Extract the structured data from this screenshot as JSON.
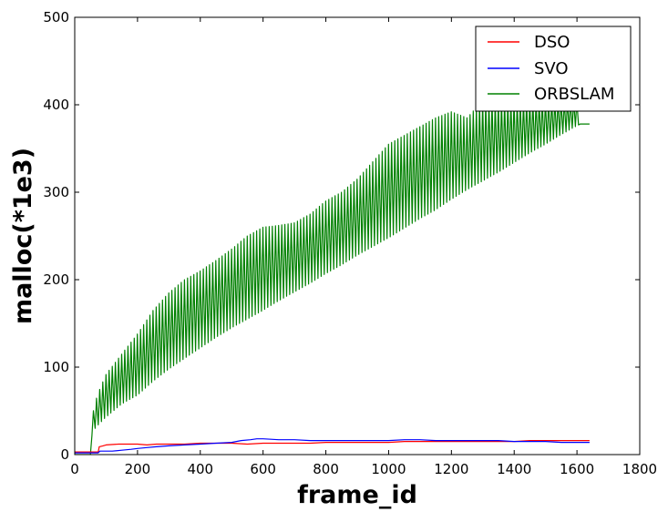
{
  "chart_data": {
    "type": "line",
    "title": "",
    "xlabel": "frame_id",
    "ylabel": "malloc(*1e3)",
    "xlim": [
      0,
      1800
    ],
    "ylim": [
      0,
      500
    ],
    "xticks": [
      0,
      200,
      400,
      600,
      800,
      1000,
      1200,
      1400,
      1600,
      1800
    ],
    "yticks": [
      0,
      100,
      200,
      300,
      400,
      500
    ],
    "grid": false,
    "legend_position": "top-right",
    "series": [
      {
        "name": "DSO",
        "color": "#ff0000",
        "points": [
          [
            0,
            3
          ],
          [
            60,
            3
          ],
          [
            75,
            3
          ],
          [
            78,
            9
          ],
          [
            90,
            10
          ],
          [
            100,
            11
          ],
          [
            140,
            12
          ],
          [
            200,
            12
          ],
          [
            230,
            11
          ],
          [
            260,
            12
          ],
          [
            300,
            12
          ],
          [
            350,
            12
          ],
          [
            400,
            13
          ],
          [
            450,
            13
          ],
          [
            500,
            13
          ],
          [
            550,
            12
          ],
          [
            600,
            13
          ],
          [
            650,
            13
          ],
          [
            700,
            13
          ],
          [
            750,
            13
          ],
          [
            800,
            14
          ],
          [
            850,
            14
          ],
          [
            900,
            14
          ],
          [
            950,
            14
          ],
          [
            1000,
            14
          ],
          [
            1050,
            15
          ],
          [
            1100,
            15
          ],
          [
            1150,
            15
          ],
          [
            1200,
            15
          ],
          [
            1250,
            15
          ],
          [
            1300,
            15
          ],
          [
            1350,
            15
          ],
          [
            1400,
            15
          ],
          [
            1450,
            16
          ],
          [
            1500,
            16
          ],
          [
            1550,
            16
          ],
          [
            1600,
            16
          ],
          [
            1640,
            16
          ]
        ]
      },
      {
        "name": "SVO",
        "color": "#0000ff",
        "points": [
          [
            0,
            2
          ],
          [
            60,
            2
          ],
          [
            75,
            2
          ],
          [
            80,
            4
          ],
          [
            120,
            4
          ],
          [
            150,
            5
          ],
          [
            180,
            6
          ],
          [
            200,
            7
          ],
          [
            230,
            8
          ],
          [
            260,
            9
          ],
          [
            300,
            10
          ],
          [
            350,
            11
          ],
          [
            400,
            12
          ],
          [
            450,
            13
          ],
          [
            500,
            14
          ],
          [
            530,
            16
          ],
          [
            560,
            17
          ],
          [
            580,
            18
          ],
          [
            600,
            18
          ],
          [
            650,
            17
          ],
          [
            700,
            17
          ],
          [
            750,
            16
          ],
          [
            800,
            16
          ],
          [
            850,
            16
          ],
          [
            900,
            16
          ],
          [
            950,
            16
          ],
          [
            1000,
            16
          ],
          [
            1050,
            17
          ],
          [
            1100,
            17
          ],
          [
            1150,
            16
          ],
          [
            1200,
            16
          ],
          [
            1250,
            16
          ],
          [
            1300,
            16
          ],
          [
            1350,
            16
          ],
          [
            1400,
            15
          ],
          [
            1450,
            15
          ],
          [
            1500,
            15
          ],
          [
            1550,
            14
          ],
          [
            1600,
            14
          ],
          [
            1640,
            14
          ]
        ]
      },
      {
        "name": "ORBSLAM",
        "color": "#008000",
        "low_envelope": [
          [
            50,
            0
          ],
          [
            55,
            22
          ],
          [
            60,
            28
          ],
          [
            80,
            36
          ],
          [
            100,
            43
          ],
          [
            150,
            58
          ],
          [
            200,
            68
          ],
          [
            250,
            84
          ],
          [
            300,
            98
          ],
          [
            350,
            110
          ],
          [
            400,
            122
          ],
          [
            450,
            134
          ],
          [
            500,
            145
          ],
          [
            550,
            155
          ],
          [
            600,
            165
          ],
          [
            650,
            176
          ],
          [
            700,
            186
          ],
          [
            750,
            196
          ],
          [
            800,
            207
          ],
          [
            850,
            217
          ],
          [
            900,
            228
          ],
          [
            950,
            238
          ],
          [
            1000,
            248
          ],
          [
            1050,
            259
          ],
          [
            1100,
            270
          ],
          [
            1150,
            280
          ],
          [
            1200,
            292
          ],
          [
            1250,
            303
          ],
          [
            1300,
            313
          ],
          [
            1350,
            323
          ],
          [
            1400,
            334
          ],
          [
            1450,
            345
          ],
          [
            1500,
            355
          ],
          [
            1550,
            366
          ],
          [
            1600,
            376
          ],
          [
            1610,
            378
          ],
          [
            1640,
            378
          ]
        ],
        "high_envelope": [
          [
            50,
            0
          ],
          [
            55,
            42
          ],
          [
            65,
            60
          ],
          [
            80,
            75
          ],
          [
            100,
            92
          ],
          [
            150,
            115
          ],
          [
            200,
            138
          ],
          [
            250,
            165
          ],
          [
            300,
            185
          ],
          [
            350,
            200
          ],
          [
            400,
            210
          ],
          [
            450,
            222
          ],
          [
            500,
            235
          ],
          [
            550,
            250
          ],
          [
            600,
            260
          ],
          [
            650,
            262
          ],
          [
            700,
            265
          ],
          [
            750,
            275
          ],
          [
            800,
            290
          ],
          [
            850,
            300
          ],
          [
            900,
            315
          ],
          [
            950,
            335
          ],
          [
            1000,
            355
          ],
          [
            1050,
            365
          ],
          [
            1100,
            375
          ],
          [
            1150,
            385
          ],
          [
            1200,
            392
          ],
          [
            1250,
            385
          ],
          [
            1300,
            405
          ],
          [
            1350,
            405
          ],
          [
            1400,
            405
          ],
          [
            1450,
            405
          ],
          [
            1500,
            405
          ],
          [
            1550,
            405
          ],
          [
            1600,
            405
          ],
          [
            1610,
            378
          ],
          [
            1640,
            378
          ]
        ],
        "oscillation_period": 10
      }
    ]
  }
}
